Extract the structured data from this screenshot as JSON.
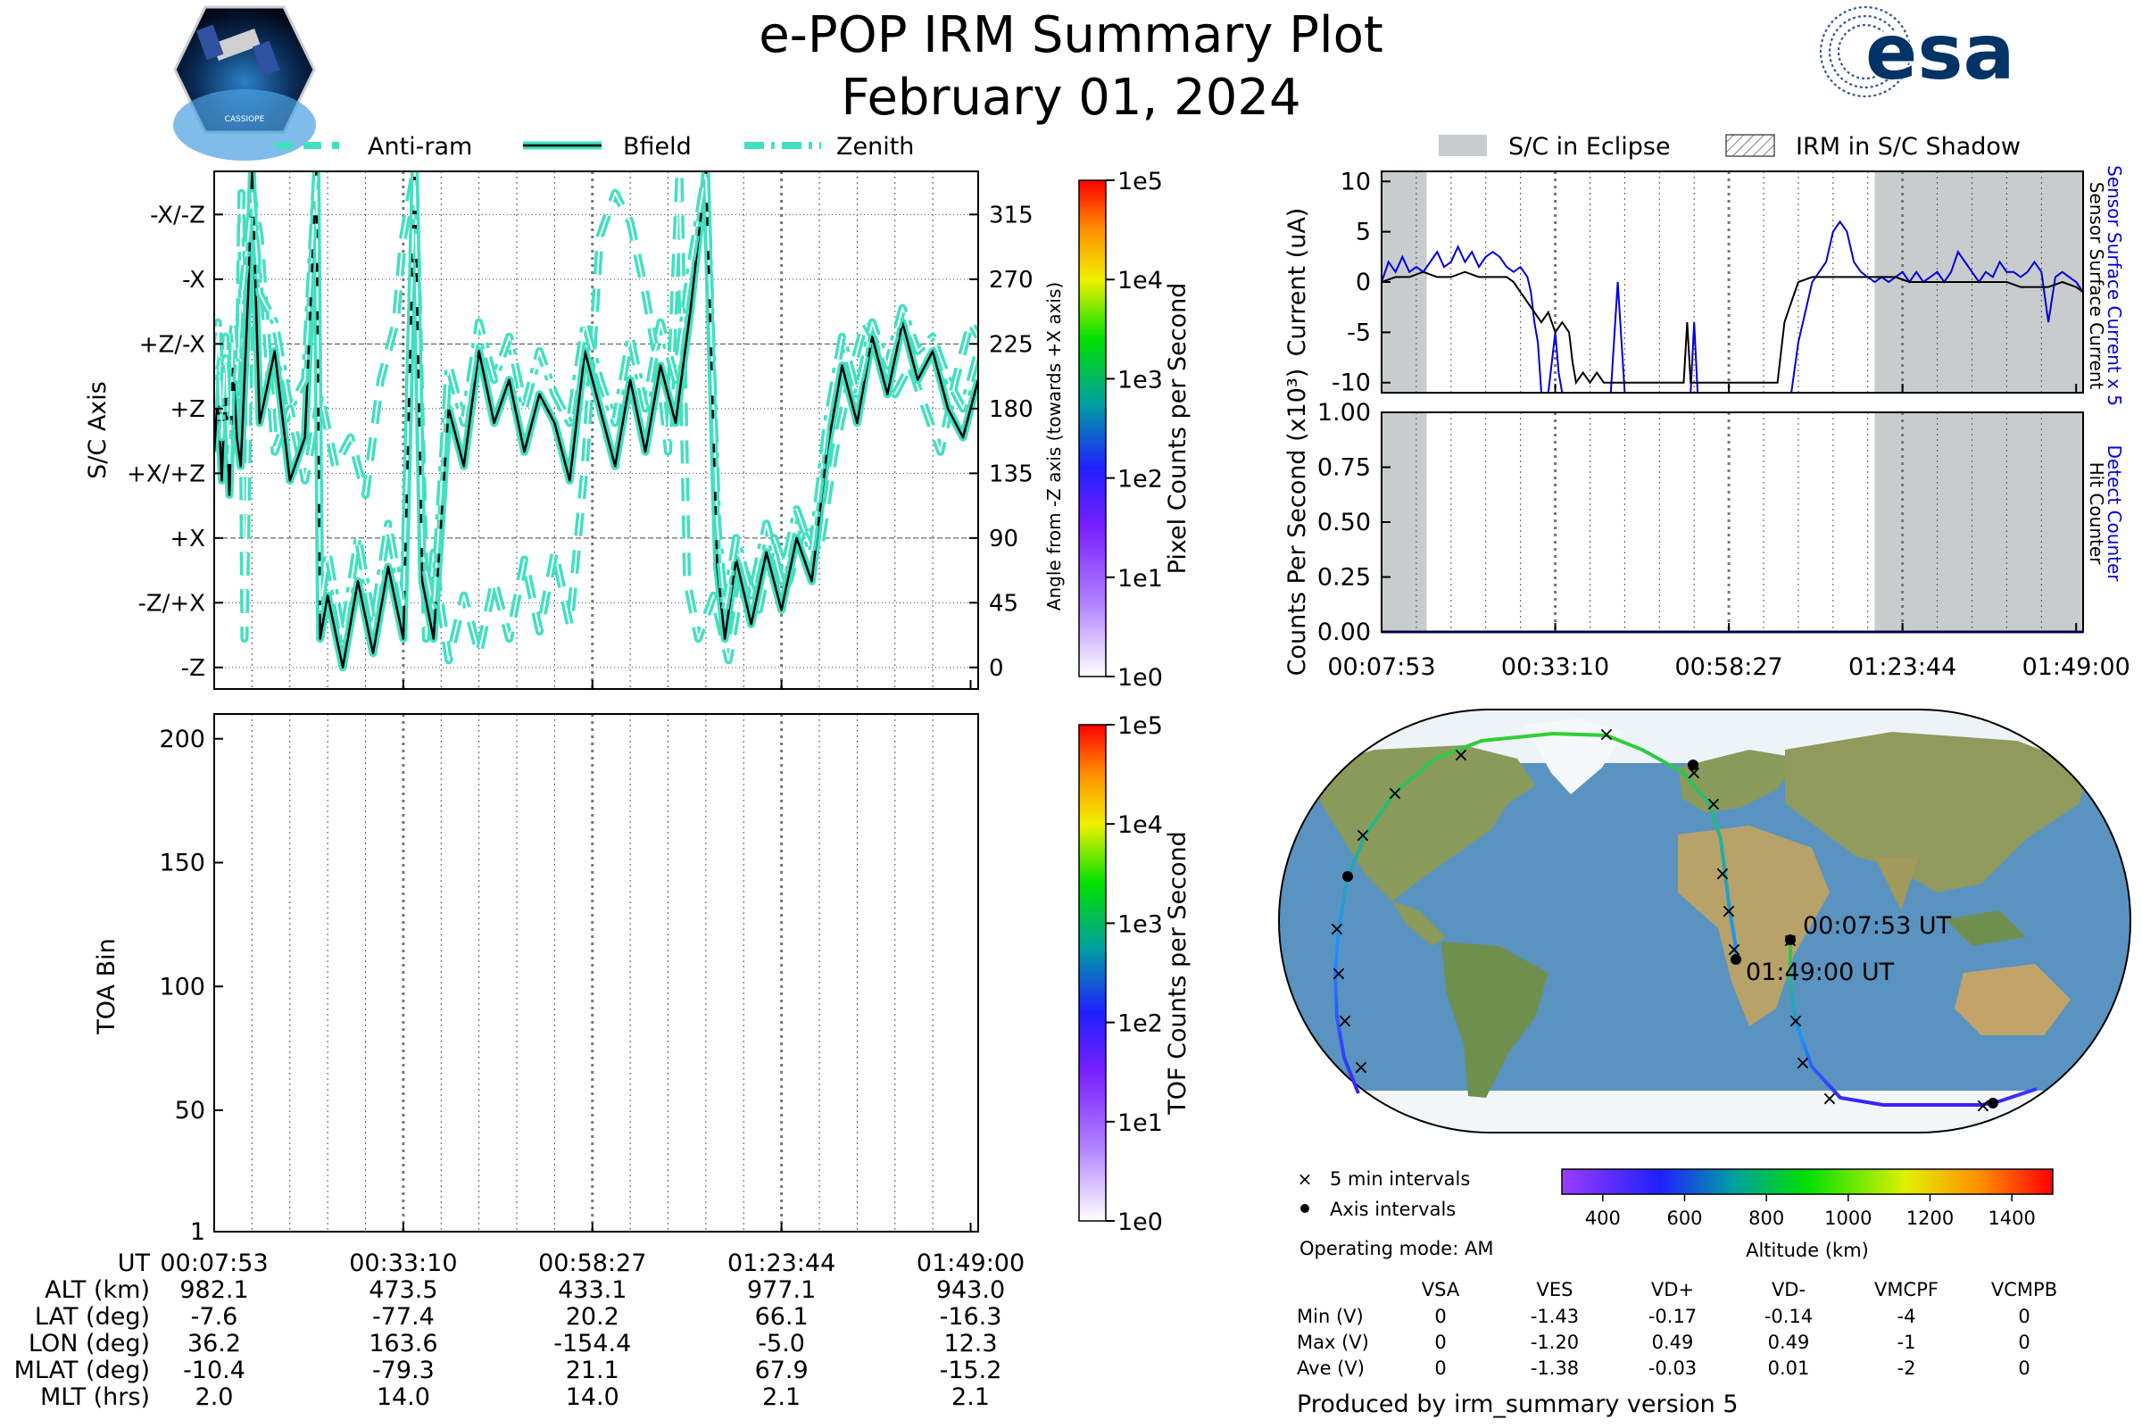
{
  "header": {
    "title": "e-POP IRM Summary Plot",
    "date": "February 01, 2024",
    "mission_logo_text": "CASSIOPE",
    "agency_logo_text": "esa"
  },
  "colors": {
    "trace_fill": "#40e0c0",
    "trace_line": "#000000",
    "eclipse": "#c8cccc",
    "sensor_current": "#0000dd",
    "surface_current": "#000000"
  },
  "chart_data": [
    {
      "id": "sc-axis",
      "type": "line",
      "ylabel": "S/C Axis",
      "ylabel_right": "Angle from -Z axis (towards +X axis)",
      "ylim": [
        -15,
        345
      ],
      "yticks_left": [
        {
          "v": 0,
          "label": "-Z"
        },
        {
          "v": 45,
          "label": "-Z/+X"
        },
        {
          "v": 90,
          "label": "+X"
        },
        {
          "v": 135,
          "label": "+X/+Z"
        },
        {
          "v": 180,
          "label": "+Z"
        },
        {
          "v": 225,
          "label": "+Z/-X"
        },
        {
          "v": 270,
          "label": "-X"
        },
        {
          "v": 315,
          "label": "-X/-Z"
        }
      ],
      "yticks_right": [
        0,
        45,
        90,
        135,
        180,
        225,
        270,
        315
      ],
      "legend": [
        "Anti-ram",
        "Bfield",
        "Zenith"
      ],
      "colorbar": {
        "label": "Pixel Counts per Second",
        "ticks": [
          "1e0",
          "1e1",
          "1e2",
          "1e3",
          "1e4",
          "1e5"
        ]
      },
      "series": [
        {
          "name": "Anti-ram",
          "style": "dashed",
          "x": [
            0,
            0.5,
            1.0,
            1.5,
            2.0,
            2.5,
            3.0,
            3.4,
            3.6,
            4.0,
            5,
            6,
            8,
            10,
            12,
            14,
            16,
            18,
            20,
            22,
            24,
            25,
            26.5,
            28,
            29,
            30,
            31,
            33,
            35,
            37,
            39,
            41,
            43,
            45,
            47,
            49,
            51,
            53,
            55,
            57,
            59,
            60,
            61.5,
            62.5,
            64,
            66,
            68,
            70,
            72,
            74,
            76,
            78,
            80,
            82,
            84,
            86,
            88,
            90,
            92,
            94,
            96,
            98,
            100,
            101
          ],
          "y": [
            200,
            230,
            170,
            215,
            145,
            220,
            175,
            250,
            330,
            20,
            330,
            300,
            150,
            180,
            130,
            190,
            140,
            160,
            120,
            200,
            240,
            300,
            345,
            20,
            80,
            40,
            5,
            50,
            10,
            60,
            20,
            75,
            25,
            80,
            30,
            140,
            300,
            330,
            310,
            260,
            200,
            150,
            345,
            60,
            20,
            50,
            5,
            70,
            40,
            90,
            60,
            100,
            80,
            150,
            200,
            240,
            220,
            190,
            210,
            180,
            150,
            200,
            240,
            230
          ]
        },
        {
          "name": "Bfield",
          "style": "solid",
          "x": [
            0,
            0.5,
            1.0,
            1.5,
            2.0,
            2.5,
            3.0,
            3.5,
            4.5,
            5,
            6,
            8,
            10,
            12,
            13.5,
            14,
            15,
            17,
            19,
            21,
            23,
            25,
            26.5,
            27.5,
            29,
            31,
            33,
            35,
            37,
            39,
            41,
            43,
            45,
            47,
            49,
            51,
            53,
            55,
            57,
            59,
            61,
            63,
            65,
            66.5,
            67.5,
            69,
            71,
            73,
            75,
            77,
            79,
            81,
            83,
            85,
            87,
            89,
            91,
            93,
            95,
            97,
            99,
            101
          ],
          "y": [
            150,
            190,
            130,
            200,
            120,
            210,
            160,
            140,
            260,
            345,
            170,
            220,
            130,
            160,
            345,
            20,
            50,
            0,
            60,
            10,
            70,
            20,
            345,
            60,
            20,
            180,
            140,
            220,
            170,
            200,
            150,
            190,
            170,
            130,
            220,
            180,
            140,
            200,
            150,
            210,
            170,
            250,
            345,
            70,
            20,
            75,
            30,
            80,
            40,
            90,
            60,
            150,
            210,
            170,
            230,
            190,
            240,
            200,
            220,
            180,
            160,
            200
          ]
        },
        {
          "name": "Zenith",
          "style": "dashdot",
          "x": [
            0,
            0.5,
            1.0,
            1.5,
            2.0,
            2.5,
            3.0,
            3.5,
            4.5,
            5,
            6,
            8,
            10,
            12,
            13.5,
            14,
            15,
            17,
            19,
            21,
            23,
            25,
            26.5,
            27.5,
            29,
            31,
            33,
            35,
            37,
            39,
            41,
            43,
            45,
            47,
            49,
            51,
            53,
            55,
            57,
            59,
            61,
            63,
            65,
            66.5,
            67.5,
            69,
            71,
            73,
            75,
            77,
            79,
            81,
            83,
            85,
            87,
            89,
            91,
            93,
            95,
            97,
            99,
            101
          ],
          "y": [
            180,
            240,
            160,
            230,
            140,
            240,
            200,
            250,
            300,
            330,
            260,
            240,
            180,
            200,
            345,
            40,
            80,
            20,
            90,
            30,
            100,
            40,
            345,
            80,
            40,
            210,
            170,
            240,
            200,
            230,
            180,
            220,
            190,
            170,
            240,
            200,
            170,
            230,
            180,
            240,
            200,
            280,
            345,
            100,
            40,
            90,
            50,
            100,
            60,
            110,
            80,
            170,
            230,
            190,
            240,
            210,
            250,
            220,
            230,
            200,
            180,
            220
          ]
        }
      ]
    },
    {
      "id": "toa",
      "type": "heatmap",
      "ylabel": "TOA Bin",
      "ylim": [
        1,
        210
      ],
      "yticks": [
        1,
        50,
        100,
        150,
        200
      ],
      "colorbar": {
        "label": "TOF Counts per Second",
        "ticks": [
          "1e0",
          "1e1",
          "1e2",
          "1e3",
          "1e4",
          "1e5"
        ]
      },
      "values": []
    },
    {
      "id": "current",
      "type": "line",
      "ylabel": "Current (uA)",
      "ylim": [
        -11,
        11
      ],
      "yticks": [
        -10,
        -5,
        0,
        5,
        10
      ],
      "right_labels": [
        "Sensor Surface Current x 5",
        "Sensor Surface Current"
      ],
      "legend": [
        "S/C in Eclipse",
        "IRM in S/C Shadow"
      ],
      "eclipse_ranges": [
        [
          0,
          6.5
        ],
        [
          71,
          101
        ]
      ],
      "series": [
        {
          "name": "Sensor Surface Current x 5",
          "color": "#0000dd",
          "x": [
            0,
            1,
            2,
            3,
            4,
            5,
            6,
            7,
            8,
            9,
            10,
            11,
            12,
            13,
            14,
            15,
            16,
            17,
            18,
            19,
            20,
            21,
            21.5,
            22,
            22.5,
            23,
            24,
            25,
            25.5,
            26,
            27,
            28,
            28.5,
            29,
            30,
            31,
            32,
            33,
            34,
            35,
            36,
            37,
            38,
            39,
            40,
            41,
            42,
            43,
            44,
            44.5,
            45,
            45.5,
            46,
            48,
            50,
            52,
            54,
            55,
            56,
            57,
            58,
            59,
            60,
            61,
            62,
            63,
            64,
            65,
            66,
            67,
            68,
            69,
            70,
            71,
            72,
            73,
            74,
            75,
            76,
            77,
            78,
            79,
            80,
            81,
            82,
            83,
            84,
            85,
            86,
            87,
            88,
            89,
            90,
            91,
            92,
            93,
            94,
            95,
            96,
            97,
            98,
            99,
            100,
            101
          ],
          "y": [
            0,
            2,
            1,
            2.5,
            1,
            1.5,
            1,
            2,
            3,
            1.5,
            2,
            3.5,
            2,
            3,
            1.5,
            2.5,
            3,
            2.5,
            1.5,
            1,
            1.5,
            0.5,
            -1,
            -4,
            -6,
            -11,
            -11,
            -5,
            -9,
            -11,
            -11,
            -11,
            -11,
            -11,
            -11,
            -11,
            -11,
            -11,
            0,
            -11,
            -11,
            -11,
            -11,
            -11,
            -11,
            -11,
            -11,
            -11,
            -11,
            -11,
            -4,
            -11,
            -11,
            -11,
            -11,
            -11,
            -11,
            -11,
            -11,
            -11,
            -11,
            -11,
            -6,
            -3,
            0,
            1,
            2,
            5,
            6,
            5,
            2,
            1,
            0.5,
            0,
            0.5,
            0,
            0.5,
            1,
            0,
            1,
            0,
            0.5,
            1,
            0,
            1,
            3,
            2,
            1,
            0,
            1,
            0.5,
            2,
            1,
            1,
            0.5,
            1,
            2,
            1,
            -4,
            0.5,
            1,
            0.5,
            0,
            -1
          ]
        },
        {
          "name": "Sensor Surface Current",
          "color": "#000000",
          "x": [
            0,
            2,
            4,
            6,
            8,
            10,
            12,
            14,
            16,
            18,
            19,
            20,
            21,
            22,
            23,
            24,
            25,
            26,
            27,
            27.5,
            28,
            29,
            30,
            31,
            32,
            33,
            34,
            35,
            36,
            37,
            38,
            39,
            40,
            41,
            42,
            43,
            43.5,
            44,
            44.5,
            45,
            46,
            48,
            50,
            52,
            54,
            55,
            56,
            57,
            58,
            59,
            60,
            62,
            64,
            66,
            68,
            70,
            72,
            74,
            76,
            78,
            80,
            82,
            84,
            86,
            88,
            90,
            92,
            94,
            96,
            98,
            100,
            101
          ],
          "y": [
            0,
            0.5,
            0.5,
            1,
            0.5,
            0.5,
            1,
            0.5,
            0.5,
            0.5,
            0,
            -1,
            -2,
            -3,
            -4,
            -3,
            -5,
            -4,
            -5,
            -8,
            -10,
            -9,
            -10,
            -9,
            -10,
            -10,
            -10,
            -10,
            -10,
            -10,
            -10,
            -10,
            -10,
            -10,
            -10,
            -10,
            -10,
            -4,
            -10,
            -10,
            -10,
            -10,
            -10,
            -10,
            -10,
            -10,
            -10,
            -10,
            -4,
            -2,
            0,
            0.5,
            0.5,
            0.5,
            0.5,
            0.5,
            0.5,
            0.5,
            0,
            0,
            0,
            0,
            0,
            0,
            0,
            0,
            -0.5,
            -0.5,
            -0.5,
            0,
            -0.5,
            -1
          ]
        }
      ]
    },
    {
      "id": "counts",
      "type": "line",
      "ylabel": "Counts Per Second (x10³)",
      "ylim": [
        0,
        1
      ],
      "yticks": [
        "0.00",
        "0.25",
        "0.50",
        "0.75",
        "1.00"
      ],
      "right_labels": [
        "Detect Counter",
        "Hit Counter"
      ],
      "series": [
        {
          "name": "Detect Counter",
          "color": "#0000dd",
          "x": [
            0,
            101
          ],
          "y": [
            0,
            0
          ]
        }
      ]
    }
  ],
  "time_axis": {
    "ticks": [
      "00:07:53",
      "00:33:10",
      "00:58:27",
      "01:23:44",
      "01:49:00"
    ]
  },
  "ephemeris": {
    "headers": [
      "UT",
      "ALT (km)",
      "LAT (deg)",
      "LON (deg)",
      "MLAT (deg)",
      "MLT (hrs)"
    ],
    "columns": [
      [
        "00:07:53",
        "982.1",
        "-7.6",
        "36.2",
        "-10.4",
        "2.0"
      ],
      [
        "00:33:10",
        "473.5",
        "-77.4",
        "163.6",
        "-79.3",
        "14.0"
      ],
      [
        "00:58:27",
        "433.1",
        "20.2",
        "-154.4",
        "21.1",
        "14.0"
      ],
      [
        "01:23:44",
        "977.1",
        "66.1",
        "-5.0",
        "67.9",
        "2.1"
      ],
      [
        "01:49:00",
        "943.0",
        "-16.3",
        "12.3",
        "-15.2",
        "2.1"
      ]
    ]
  },
  "map": {
    "start_label": "00:07:53 UT",
    "end_label": "01:49:00 UT",
    "legend_5min": "5 min intervals",
    "legend_axis": "Axis intervals",
    "operating_mode": "Operating mode: AM",
    "colorbar_label": "Altitude (km)",
    "colorbar_ticks": [
      400,
      600,
      800,
      1000,
      1200,
      1400
    ],
    "colorbar_range": [
      300,
      1500
    ]
  },
  "voltages": {
    "headers": [
      "VSA",
      "VES",
      "VD+",
      "VD-",
      "VMCPF",
      "VCMPB"
    ],
    "rows": [
      {
        "label": "Min (V)",
        "values": [
          "0",
          "-1.43",
          "-0.17",
          "-0.14",
          "-4",
          "0"
        ]
      },
      {
        "label": "Max (V)",
        "values": [
          "0",
          "-1.20",
          "0.49",
          "0.49",
          "-1",
          "0"
        ]
      },
      {
        "label": "Ave (V)",
        "values": [
          "0",
          "-1.38",
          "-0.03",
          "0.01",
          "-2",
          "0"
        ]
      }
    ]
  },
  "footer": "Produced by irm_summary version 5"
}
